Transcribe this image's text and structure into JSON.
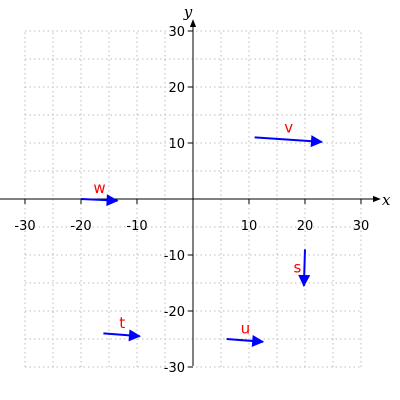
{
  "chart_data": {
    "type": "vector-field",
    "xlabel": "x",
    "ylabel": "y",
    "xlim": [
      -30,
      30
    ],
    "ylim": [
      -30,
      30
    ],
    "x_ticks": [
      -30,
      -20,
      -10,
      10,
      20,
      30
    ],
    "y_ticks": [
      -30,
      -20,
      -10,
      10,
      20,
      30
    ],
    "grid": true,
    "vector_color": "#0000ff",
    "label_color": "#ff0000",
    "vectors": [
      {
        "name": "v",
        "start": [
          11,
          11
        ],
        "end": [
          23,
          10.2
        ]
      },
      {
        "name": "w",
        "start": [
          -20,
          0
        ],
        "end": [
          -13.5,
          -0.3
        ]
      },
      {
        "name": "s",
        "start": [
          20,
          -9
        ],
        "end": [
          19.8,
          -15.5
        ]
      },
      {
        "name": "t",
        "start": [
          -16,
          -24
        ],
        "end": [
          -9.5,
          -24.5
        ]
      },
      {
        "name": "u",
        "start": [
          6,
          -25
        ],
        "end": [
          12.5,
          -25.5
        ]
      }
    ]
  }
}
